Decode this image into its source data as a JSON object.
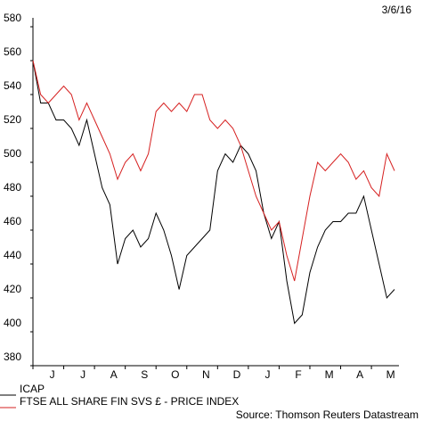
{
  "chart_data": {
    "type": "line",
    "date": "3/6/16",
    "source": "Source: Thomson Reuters Datastream",
    "categories": [
      null,
      null,
      "J",
      null,
      null,
      null,
      "J",
      null,
      null,
      null,
      "A",
      null,
      null,
      null,
      "S",
      null,
      null,
      null,
      "O",
      null,
      null,
      null,
      "N",
      null,
      null,
      null,
      "D",
      null,
      null,
      null,
      "J",
      null,
      null,
      null,
      "F",
      null,
      null,
      null,
      "M",
      null,
      null,
      null,
      "A",
      null,
      null,
      null,
      "M",
      null
    ],
    "series": [
      {
        "name": "ICAP",
        "color": "#000000",
        "values": [
          560,
          535,
          535,
          525,
          525,
          520,
          510,
          525,
          505,
          485,
          475,
          440,
          455,
          460,
          450,
          455,
          470,
          460,
          445,
          425,
          445,
          450,
          455,
          460,
          495,
          505,
          500,
          510,
          505,
          495,
          470,
          455,
          465,
          430,
          405,
          410,
          435,
          450,
          460,
          465,
          465,
          470,
          470,
          480,
          460,
          440,
          420,
          425
        ]
      },
      {
        "name": "FTSE ALL SHARE FIN SVS £ - PRICE INDEX",
        "color": "#d62020",
        "values": [
          560,
          540,
          535,
          540,
          545,
          540,
          525,
          535,
          525,
          515,
          505,
          490,
          500,
          505,
          495,
          505,
          530,
          535,
          530,
          535,
          530,
          540,
          540,
          525,
          520,
          525,
          520,
          510,
          495,
          480,
          470,
          460,
          465,
          445,
          430,
          455,
          480,
          500,
          495,
          500,
          505,
          500,
          490,
          495,
          485,
          480,
          505,
          495
        ]
      }
    ],
    "ylim": [
      380,
      580
    ],
    "yticks": [
      380,
      400,
      420,
      440,
      460,
      480,
      500,
      520,
      540,
      560,
      580
    ]
  }
}
